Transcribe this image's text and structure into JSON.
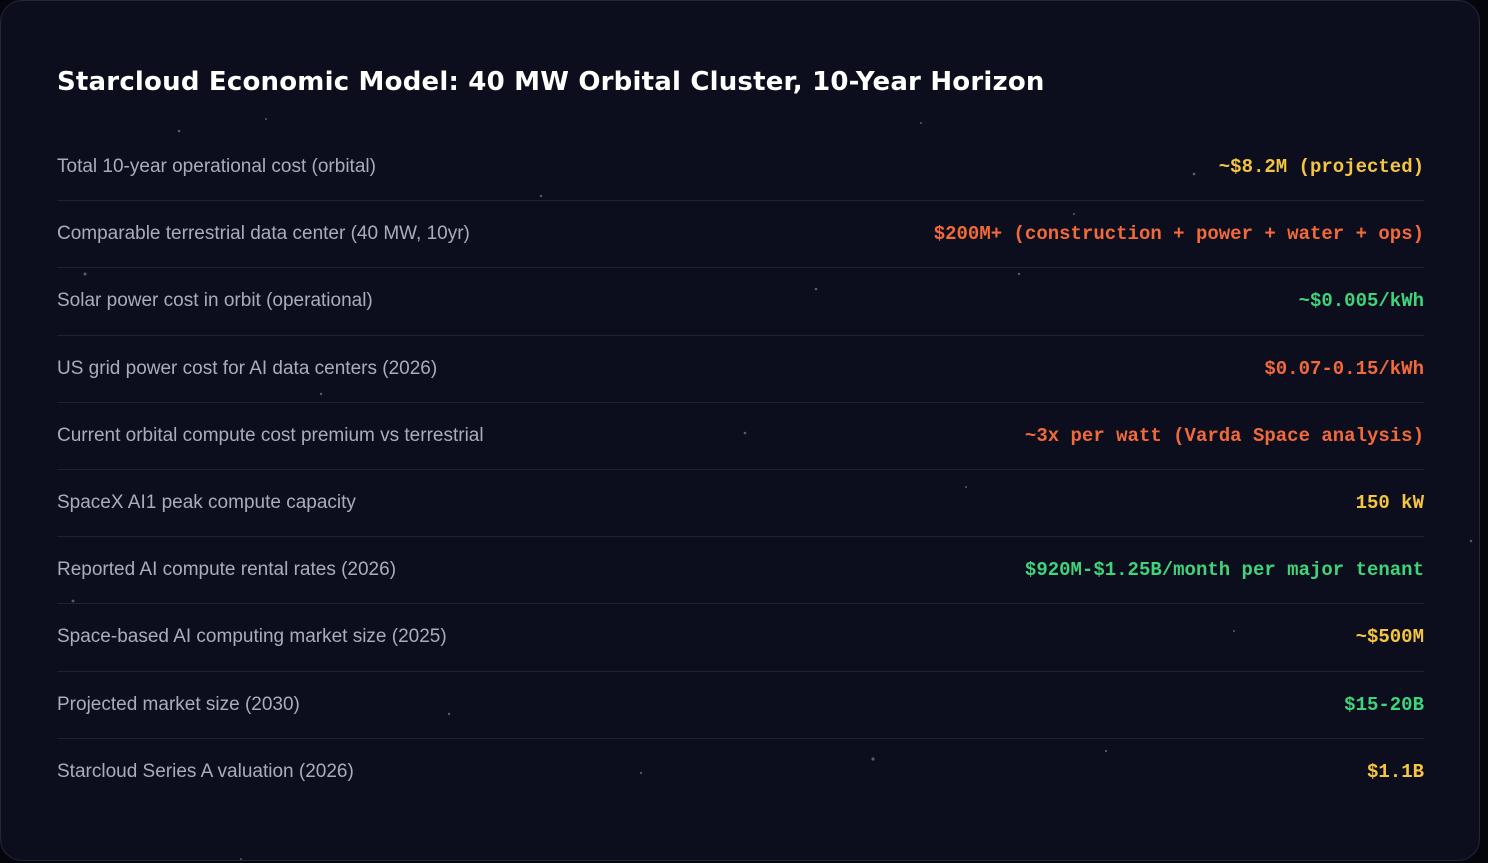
{
  "header": {
    "title": "Starcloud Economic Model: 40 MW Orbital Cluster, 10-Year Horizon"
  },
  "table": {
    "rows": [
      {
        "label": "Total 10-year operational cost (orbital)",
        "value": "~$8.2M (projected)",
        "color": "#f5c542"
      },
      {
        "label": "Comparable terrestrial data center (40 MW, 10yr)",
        "value": "$200M+ (construction + power + water + ops)",
        "color": "#f2693a"
      },
      {
        "label": "Solar power cost in orbit (operational)",
        "value": "~$0.005/kWh",
        "color": "#3fd37a"
      },
      {
        "label": "US grid power cost for AI data centers (2026)",
        "value": "$0.07-0.15/kWh",
        "color": "#f2693a"
      },
      {
        "label": "Current orbital compute cost premium vs terrestrial",
        "value": "~3x per watt (Varda Space analysis)",
        "color": "#f2693a"
      },
      {
        "label": "SpaceX AI1 peak compute capacity",
        "value": "150 kW",
        "color": "#f5c542"
      },
      {
        "label": "Reported AI compute rental rates (2026)",
        "value": "$920M-$1.25B/month per major tenant",
        "color": "#3fd37a"
      },
      {
        "label": "Space-based AI computing market size (2025)",
        "value": "~$500M",
        "color": "#f5c542"
      },
      {
        "label": "Projected market size (2030)",
        "value": "$15-20B",
        "color": "#3fd37a"
      },
      {
        "label": "Starcloud Series A valuation (2026)",
        "value": "$1.1B",
        "color": "#f5c542"
      }
    ]
  }
}
